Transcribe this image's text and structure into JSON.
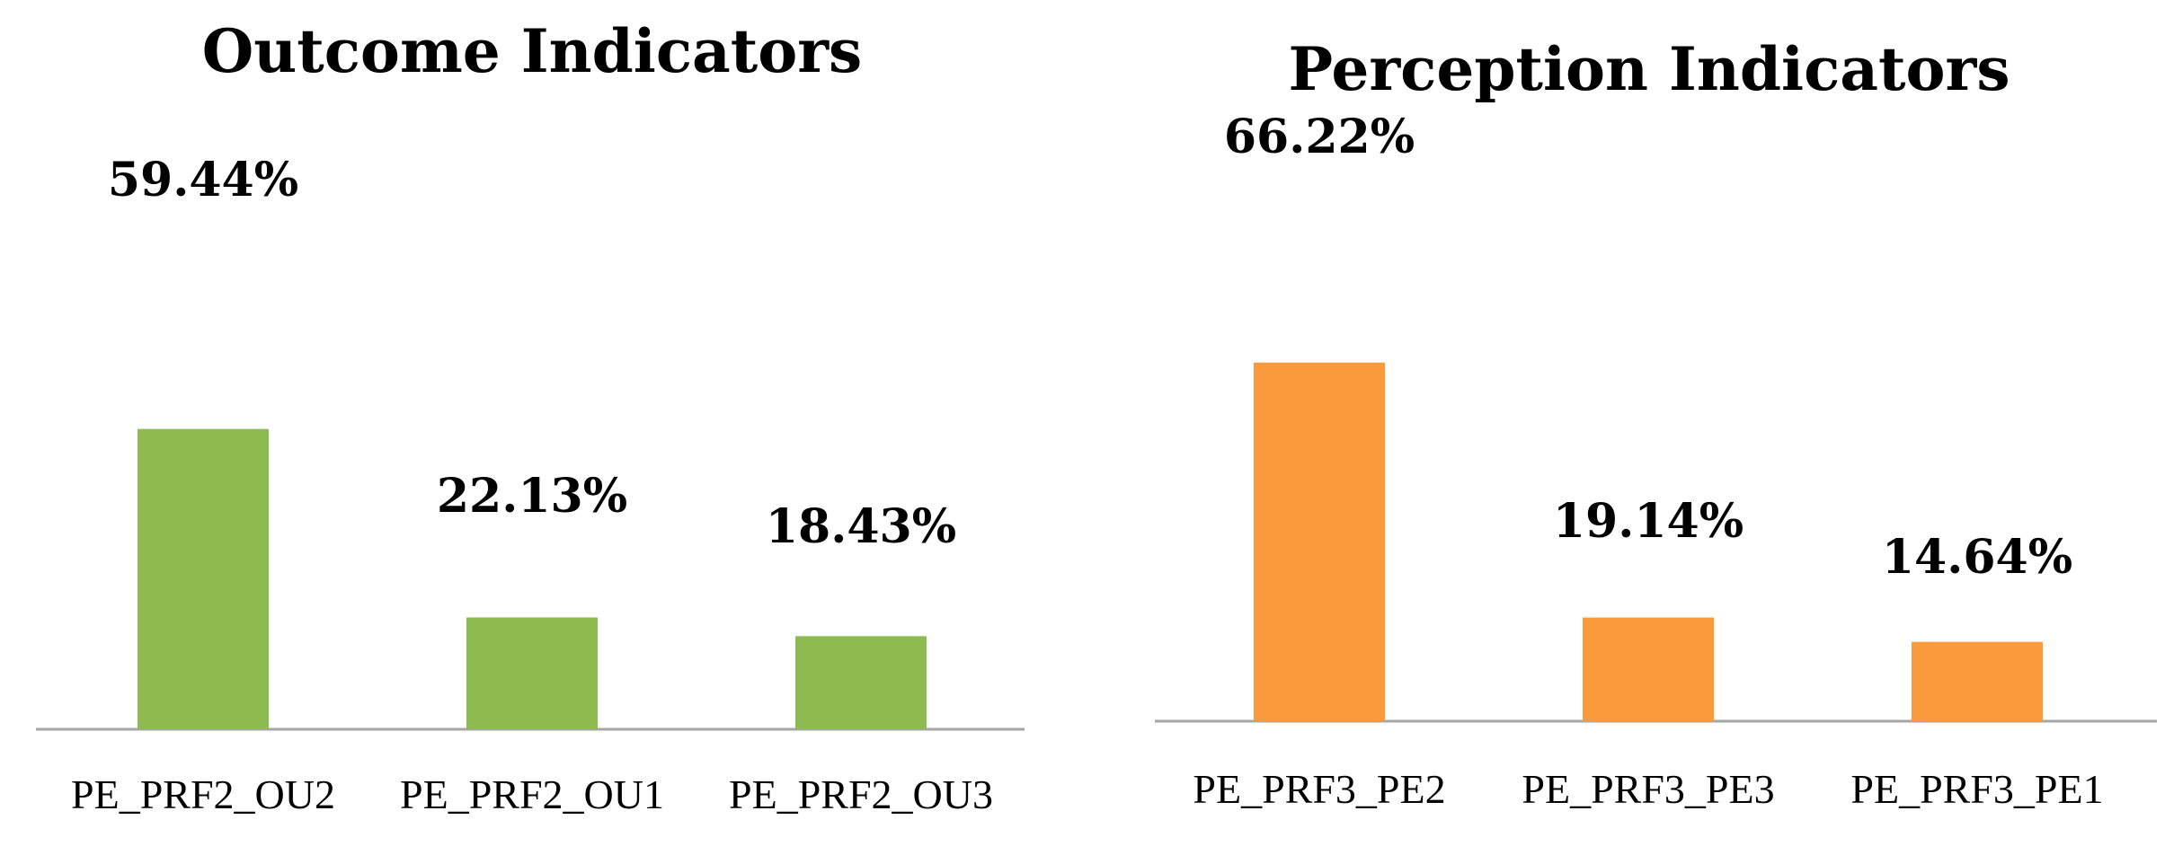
{
  "chart_data": [
    {
      "type": "bar",
      "title": "Outcome Indicators",
      "categories": [
        "PE_PRF2_OU2",
        "PE_PRF2_OU1",
        "PE_PRF2_OU3"
      ],
      "values": [
        59.44,
        22.13,
        18.43
      ],
      "value_labels": [
        "59.44%",
        "22.13%",
        "18.43%"
      ],
      "color": "#8DBB4F",
      "xlabel": "",
      "ylabel": "",
      "ylim": [
        0,
        70
      ],
      "grid": false,
      "legend": "none"
    },
    {
      "type": "bar",
      "title": "Perception Indicators",
      "categories": [
        "PE_PRF3_PE2",
        "PE_PRF3_PE3",
        "PE_PRF3_PE1"
      ],
      "values": [
        66.22,
        19.14,
        14.64
      ],
      "value_labels": [
        "66.22%",
        "19.14%",
        "14.64%"
      ],
      "color": "#F99B3D",
      "xlabel": "",
      "ylabel": "",
      "ylim": [
        0,
        70
      ],
      "grid": false,
      "legend": "none"
    }
  ]
}
